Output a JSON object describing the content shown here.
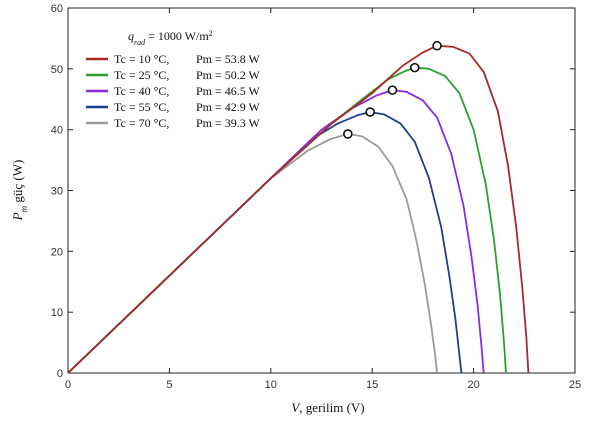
{
  "chart_data": {
    "type": "line",
    "xlabel_var": "V",
    "xlabel_text": ", gerilim (V)",
    "ylabel_var": "P",
    "ylabel_sub": "m",
    "ylabel_text": " güç (W)",
    "xlim": [
      0,
      25
    ],
    "ylim": [
      0,
      60
    ],
    "xticks": [
      0,
      5,
      10,
      15,
      20,
      25
    ],
    "yticks": [
      0,
      10,
      20,
      30,
      40,
      50,
      60
    ],
    "grid": false,
    "legend_position": "top-left",
    "legend_header_var": "q",
    "legend_header_sub": "rad",
    "legend_header_text": " = 1000 W/m",
    "legend_header_sup": "2",
    "series": [
      {
        "name": "Tc = 10 °C,",
        "pm_label": "Pm = 53.8 W",
        "color": "#a52a2a",
        "vmax": 22.7,
        "peak": [
          18.2,
          53.8
        ],
        "points": [
          [
            0,
            0
          ],
          [
            10,
            32
          ],
          [
            13,
            41
          ],
          [
            15,
            46
          ],
          [
            16.5,
            50.5
          ],
          [
            17.5,
            52.7
          ],
          [
            18.2,
            53.8
          ],
          [
            19,
            53.6
          ],
          [
            19.8,
            52.5
          ],
          [
            20.5,
            49.5
          ],
          [
            21.2,
            43
          ],
          [
            21.7,
            34
          ],
          [
            22.1,
            24
          ],
          [
            22.4,
            14
          ],
          [
            22.6,
            6
          ],
          [
            22.7,
            0
          ]
        ]
      },
      {
        "name": "Tc = 25 °C,",
        "pm_label": "Pm = 50.2 W",
        "color": "#2ca02c",
        "vmax": 21.6,
        "peak": [
          17.1,
          50.2
        ],
        "points": [
          [
            0,
            0
          ],
          [
            10,
            32
          ],
          [
            13,
            41
          ],
          [
            14.5,
            45
          ],
          [
            15.8,
            48.3
          ],
          [
            16.6,
            49.6
          ],
          [
            17.1,
            50.2
          ],
          [
            17.8,
            50
          ],
          [
            18.6,
            48.8
          ],
          [
            19.3,
            46
          ],
          [
            20,
            40
          ],
          [
            20.6,
            31
          ],
          [
            21,
            22
          ],
          [
            21.3,
            13
          ],
          [
            21.5,
            5
          ],
          [
            21.6,
            0
          ]
        ]
      },
      {
        "name": "Tc = 40 °C,",
        "pm_label": "Pm = 46.5 W",
        "color": "#8a2be2",
        "vmax": 20.5,
        "peak": [
          16,
          46.5
        ],
        "points": [
          [
            0,
            0
          ],
          [
            10,
            32
          ],
          [
            12.5,
            40
          ],
          [
            14,
            43.5
          ],
          [
            15.2,
            45.6
          ],
          [
            16,
            46.5
          ],
          [
            16.7,
            46.2
          ],
          [
            17.5,
            44.8
          ],
          [
            18.2,
            42
          ],
          [
            18.9,
            36
          ],
          [
            19.5,
            27.5
          ],
          [
            19.9,
            19
          ],
          [
            20.2,
            11
          ],
          [
            20.4,
            4
          ],
          [
            20.5,
            0
          ]
        ]
      },
      {
        "name": "Tc = 55 °C,",
        "pm_label": "Pm = 42.9 W",
        "color": "#1f3f8f",
        "vmax": 19.4,
        "peak": [
          14.9,
          42.9
        ],
        "points": [
          [
            0,
            0
          ],
          [
            10,
            32
          ],
          [
            12,
            38.4
          ],
          [
            13.3,
            41
          ],
          [
            14.3,
            42.4
          ],
          [
            14.9,
            42.9
          ],
          [
            15.6,
            42.5
          ],
          [
            16.4,
            41
          ],
          [
            17.1,
            38
          ],
          [
            17.8,
            32
          ],
          [
            18.4,
            24
          ],
          [
            18.8,
            16
          ],
          [
            19.1,
            9
          ],
          [
            19.3,
            3
          ],
          [
            19.4,
            0
          ]
        ]
      },
      {
        "name": "Tc = 70 °C,",
        "pm_label": "Pm = 39.3 W",
        "color": "#9a9a9a",
        "vmax": 18.2,
        "peak": [
          13.8,
          39.3
        ],
        "points": [
          [
            0,
            0
          ],
          [
            10,
            32
          ],
          [
            11.8,
            36.5
          ],
          [
            12.9,
            38.4
          ],
          [
            13.8,
            39.3
          ],
          [
            14.5,
            38.9
          ],
          [
            15.3,
            37.2
          ],
          [
            16,
            34
          ],
          [
            16.7,
            28.5
          ],
          [
            17.2,
            21.5
          ],
          [
            17.6,
            14.5
          ],
          [
            17.9,
            8
          ],
          [
            18.1,
            3
          ],
          [
            18.2,
            0
          ]
        ]
      }
    ]
  }
}
